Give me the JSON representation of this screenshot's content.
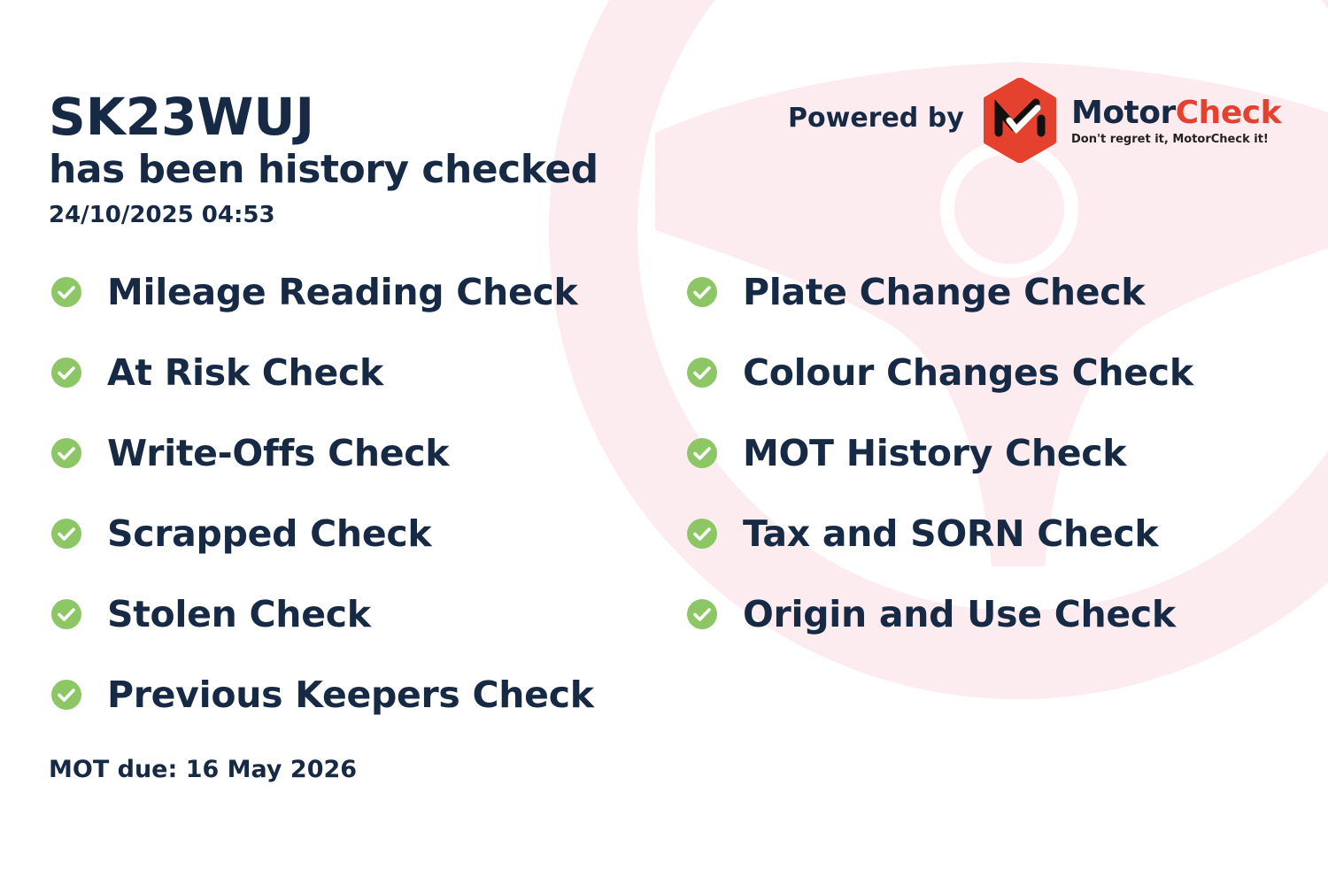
{
  "header": {
    "plate": "SK23WUJ",
    "subtitle": "has been history checked",
    "timestamp": "24/10/2025 04:53"
  },
  "branding": {
    "powered_by": "Powered by",
    "brand_part1": "Motor",
    "brand_part2": "Check",
    "tagline": "Don't regret it, MotorCheck it!",
    "logo_color": "#e5412f"
  },
  "checks_left": [
    {
      "label": "Mileage Reading Check",
      "icon": "check-circle-icon"
    },
    {
      "label": "At Risk Check",
      "icon": "check-circle-icon"
    },
    {
      "label": "Write-Offs Check",
      "icon": "check-circle-icon"
    },
    {
      "label": "Scrapped Check",
      "icon": "check-circle-icon"
    },
    {
      "label": "Stolen Check",
      "icon": "check-circle-icon"
    },
    {
      "label": "Previous Keepers Check",
      "icon": "check-circle-icon"
    }
  ],
  "checks_right": [
    {
      "label": "Plate Change Check",
      "icon": "check-circle-icon"
    },
    {
      "label": "Colour Changes Check",
      "icon": "check-circle-icon"
    },
    {
      "label": "MOT History Check",
      "icon": "check-circle-icon"
    },
    {
      "label": "Tax and SORN Check",
      "icon": "check-circle-icon"
    },
    {
      "label": "Origin and Use Check",
      "icon": "check-circle-icon"
    }
  ],
  "footer": {
    "mot_due": "MOT due: 16 May 2026"
  },
  "colors": {
    "text": "#172a45",
    "check": "#8cc665",
    "watermark": "#fcebef"
  }
}
